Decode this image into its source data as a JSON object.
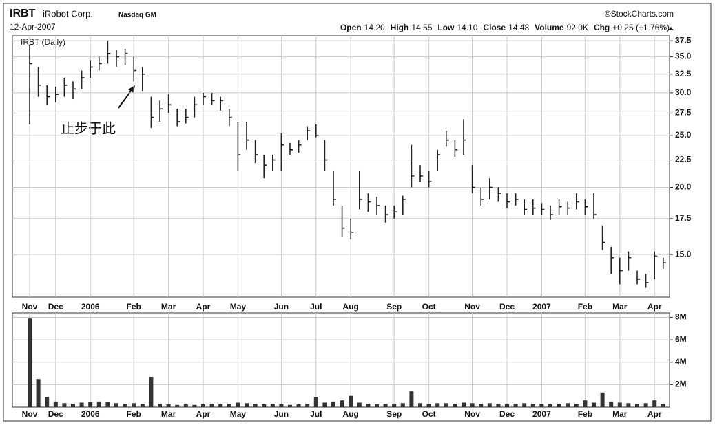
{
  "header": {
    "symbol": "IRBT",
    "company": "iRobot Corp.",
    "exchange": "Nasdaq GM",
    "source": "©StockCharts.com",
    "date": "12-Apr-2007",
    "stats": [
      [
        "Open",
        "14.20"
      ],
      [
        "High",
        "14.55"
      ],
      [
        "Low",
        "14.10"
      ],
      [
        "Close",
        "14.48"
      ],
      [
        "Volume",
        "92.0K"
      ],
      [
        "Chg",
        "+0.25 (+1.76%)"
      ]
    ]
  },
  "chart_data": [
    {
      "type": "ohlc",
      "label": "IRBT (Daily)",
      "annotation": "止步于此",
      "color": "#222222",
      "log": true,
      "grid": true,
      "categories": [
        "Nov",
        null,
        null,
        "Dec",
        null,
        null,
        null,
        "2006",
        null,
        null,
        null,
        null,
        "Feb",
        null,
        null,
        null,
        "Mar",
        null,
        null,
        null,
        "Apr",
        null,
        null,
        null,
        "May",
        null,
        null,
        null,
        null,
        "Jun",
        null,
        null,
        null,
        "Jul",
        null,
        null,
        null,
        "Aug",
        null,
        null,
        null,
        null,
        "Sep",
        null,
        null,
        null,
        "Oct",
        null,
        null,
        null,
        null,
        "Nov",
        null,
        null,
        null,
        "Dec",
        null,
        null,
        null,
        "2007",
        null,
        null,
        null,
        null,
        "Feb",
        null,
        null,
        null,
        "Mar",
        null,
        null,
        null,
        "Apr",
        null
      ],
      "high": [
        36.8,
        33.5,
        31,
        30.8,
        32,
        31.5,
        33,
        34.5,
        35,
        37.5,
        36,
        36.2,
        35,
        33.5,
        29.5,
        29,
        29.8,
        28,
        28,
        29.5,
        30,
        30,
        29.5,
        28,
        26.5,
        26.5,
        24.5,
        23,
        23,
        25.2,
        24.2,
        24.5,
        26,
        26.2,
        24.5,
        21.5,
        18.5,
        17.5,
        21.5,
        19.5,
        19.2,
        18.5,
        18.5,
        19.3,
        24,
        22,
        21.5,
        23.5,
        25.5,
        24.5,
        26.8,
        22,
        20,
        20.8,
        20,
        19.5,
        19.5,
        19,
        19,
        18.7,
        18.5,
        19,
        18.8,
        19.5,
        19,
        19.5,
        17,
        15.5,
        14.8,
        15.2,
        14,
        13.8,
        15.2,
        14.8
      ],
      "low": [
        26.2,
        29.5,
        28.5,
        28.8,
        29.5,
        29.2,
        30.5,
        32,
        33,
        34,
        33.5,
        33.8,
        31.5,
        30.2,
        25.8,
        26.5,
        27.5,
        26,
        26.3,
        27,
        28.5,
        28.5,
        27.8,
        26,
        21.5,
        23.5,
        22.2,
        20.8,
        21.5,
        21.5,
        23,
        23.2,
        24.5,
        24.8,
        21.5,
        18.5,
        16.2,
        16,
        18.2,
        18,
        17.8,
        17.2,
        17.5,
        17.8,
        20,
        20.5,
        20,
        21.5,
        23.8,
        22.8,
        23,
        19.5,
        18.5,
        19,
        18.8,
        18.3,
        18.5,
        17.8,
        17.8,
        17.8,
        17.4,
        17.8,
        17.8,
        18.2,
        17.8,
        17.5,
        15.3,
        13.8,
        13.2,
        14,
        13.2,
        13,
        13.5,
        14.1
      ],
      "close": [
        34,
        31,
        29.5,
        29.8,
        31,
        30.5,
        32,
        33.5,
        34,
        35.5,
        35,
        35.5,
        33,
        32.5,
        27,
        28,
        28.5,
        26.5,
        27,
        28.5,
        29.5,
        29,
        29,
        27,
        23,
        24.5,
        23,
        22,
        22.5,
        24,
        23.5,
        24,
        25.5,
        25,
        22.5,
        19,
        16.8,
        16.5,
        19,
        18.8,
        18.5,
        17.8,
        18,
        19,
        21,
        21,
        20.5,
        23,
        24.5,
        23.5,
        24.5,
        20,
        19,
        20,
        19.5,
        18.8,
        19,
        18.2,
        18.3,
        18.2,
        17.8,
        18.4,
        18.3,
        18.8,
        18.4,
        17.8,
        15.8,
        14.8,
        14,
        14.8,
        13.5,
        13.3,
        14.9,
        14.48
      ],
      "ylim": [
        12.5,
        38.3
      ],
      "yticks": [
        {
          "value": 15,
          "label": "15.0"
        },
        17.5,
        {
          "value": 20,
          "label": "20.0"
        },
        22.5,
        {
          "value": 25,
          "label": "25.0"
        },
        27.5,
        {
          "value": 30,
          "label": "30.0"
        },
        32.5,
        {
          "value": 35,
          "label": "35.0"
        },
        37.5
      ]
    },
    {
      "type": "bar",
      "color": "#333333",
      "grid": true,
      "values": [
        7900000,
        2500000,
        900000,
        500000,
        350000,
        300000,
        400000,
        450000,
        500000,
        450000,
        350000,
        300000,
        350000,
        300000,
        2700000,
        300000,
        250000,
        200000,
        250000,
        200000,
        250000,
        300000,
        250000,
        300000,
        400000,
        350000,
        300000,
        250000,
        300000,
        250000,
        200000,
        250000,
        300000,
        900000,
        400000,
        500000,
        600000,
        1000000,
        400000,
        300000,
        250000,
        250000,
        300000,
        350000,
        1400000,
        350000,
        300000,
        350000,
        350000,
        300000,
        400000,
        350000,
        300000,
        350000,
        300000,
        250000,
        300000,
        350000,
        300000,
        300000,
        250000,
        300000,
        350000,
        300000,
        600000,
        400000,
        1300000,
        500000,
        400000,
        350000,
        300000,
        350000,
        600000,
        300000
      ],
      "ylim": [
        0,
        8400000
      ],
      "yticks": [
        {
          "value": 2000000,
          "label": "2M"
        },
        {
          "value": 4000000,
          "label": "4M"
        },
        {
          "value": 6000000,
          "label": "6M"
        },
        {
          "value": 8000000,
          "label": "8M"
        }
      ]
    }
  ]
}
